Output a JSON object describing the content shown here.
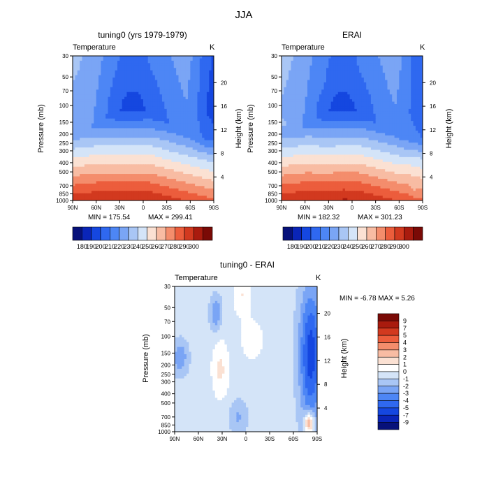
{
  "figure_title": "JJA",
  "chart_data": [
    {
      "type": "heatmap",
      "title": "tuning0 (yrs 1979-1979)",
      "subtitle_left": "Temperature",
      "subtitle_right": "K",
      "xlabel": "",
      "ylabel": "Pressure (mb)",
      "y2label": "Height (km)",
      "x_ticks": [
        "90N",
        "60N",
        "30N",
        "0",
        "30S",
        "60S",
        "90S"
      ],
      "y_ticks": [
        "30",
        "50",
        "70",
        "100",
        "150",
        "200",
        "250",
        "300",
        "400",
        "500",
        "700",
        "850",
        "1000"
      ],
      "y2_ticks": [
        "20",
        "16",
        "12",
        "8",
        "4"
      ],
      "min_label": "MIN = 175.54",
      "max_label": "MAX = 299.41",
      "colorbar_labels": [
        "180",
        "190",
        "200",
        "210",
        "220",
        "230",
        "240",
        "250",
        "260",
        "270",
        "280",
        "290",
        "300"
      ],
      "field": "model"
    },
    {
      "type": "heatmap",
      "title": "ERAI",
      "subtitle_left": "Temperature",
      "subtitle_right": "K",
      "xlabel": "",
      "ylabel": "Pressure (mb)",
      "y2label": "Height (km)",
      "x_ticks": [
        "90N",
        "60N",
        "30N",
        "0",
        "30S",
        "60S",
        "90S"
      ],
      "y_ticks": [
        "30",
        "50",
        "70",
        "100",
        "150",
        "200",
        "250",
        "300",
        "400",
        "500",
        "700",
        "850",
        "1000"
      ],
      "y2_ticks": [
        "20",
        "16",
        "12",
        "8",
        "4"
      ],
      "min_label": "MIN = 182.32",
      "max_label": "MAX = 301.23",
      "colorbar_labels": [
        "180",
        "190",
        "200",
        "210",
        "220",
        "230",
        "240",
        "250",
        "260",
        "270",
        "280",
        "290",
        "300"
      ],
      "field": "obs"
    },
    {
      "type": "heatmap",
      "title": "tuning0 - ERAI",
      "subtitle_left": "Temperature",
      "subtitle_right": "K",
      "xlabel": "",
      "ylabel": "Pressure (mb)",
      "y2label": "Height (km)",
      "x_ticks": [
        "90N",
        "60N",
        "30N",
        "0",
        "30S",
        "60S",
        "90S"
      ],
      "y_ticks": [
        "30",
        "50",
        "70",
        "100",
        "150",
        "200",
        "250",
        "300",
        "400",
        "500",
        "700",
        "850",
        "1000"
      ],
      "y2_ticks": [
        "20",
        "16",
        "12",
        "8",
        "4"
      ],
      "minmax_label": "MIN = -6.78   MAX = 5.26",
      "colorbar_labels": [
        "9",
        "7",
        "5",
        "4",
        "3",
        "2",
        "1",
        "0",
        "-1",
        "-2",
        "-3",
        "-4",
        "-5",
        "-7",
        "-9"
      ],
      "field": "diff"
    }
  ],
  "colors": {
    "abs_scale": [
      "#07117a",
      "#0a25b8",
      "#1547e0",
      "#2f68f0",
      "#4d86f5",
      "#7aa5f5",
      "#a9c6f5",
      "#d4e4f8",
      "#fbe1d3",
      "#f8bca3",
      "#f48d6c",
      "#ec5d3c",
      "#d2391f",
      "#a91b0e",
      "#7a0a06"
    ],
    "diff_scale": [
      "#7a0a06",
      "#a91b0e",
      "#d2391f",
      "#ec5d3c",
      "#f48d6c",
      "#f8bca3",
      "#fbe1d3",
      "#ffffff",
      "#d4e4f8",
      "#a9c6f5",
      "#7aa5f5",
      "#4d86f5",
      "#2f68f0",
      "#1547e0",
      "#0a25b8",
      "#07117a"
    ]
  }
}
